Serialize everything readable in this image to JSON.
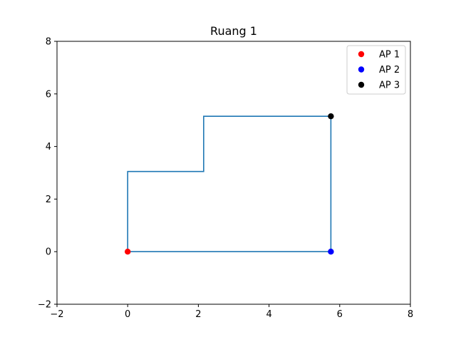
{
  "chart_data": {
    "type": "scatter",
    "title": "Ruang 1",
    "xlabel": "",
    "ylabel": "",
    "xlim": [
      -2,
      8
    ],
    "ylim": [
      -2,
      8
    ],
    "xticks": [
      -2,
      0,
      2,
      4,
      6,
      8
    ],
    "yticks": [
      -2,
      0,
      2,
      4,
      6,
      8
    ],
    "xtick_labels": [
      "−2",
      "0",
      "2",
      "4",
      "6",
      "8"
    ],
    "ytick_labels": [
      "−2",
      "0",
      "2",
      "4",
      "6",
      "8"
    ],
    "grid": false,
    "legend_position": "top-right",
    "room_outline": {
      "color": "#1f77b4",
      "x": [
        0,
        0,
        2.15,
        2.15,
        5.75,
        5.75,
        0
      ],
      "y": [
        0,
        3.05,
        3.05,
        5.15,
        5.15,
        0,
        0
      ]
    },
    "series": [
      {
        "name": "AP 1",
        "color": "#ff0000",
        "x": [
          0
        ],
        "y": [
          0
        ]
      },
      {
        "name": "AP 2",
        "color": "#0000ff",
        "x": [
          5.75
        ],
        "y": [
          0
        ]
      },
      {
        "name": "AP 3",
        "color": "#000000",
        "x": [
          5.75
        ],
        "y": [
          5.15
        ]
      }
    ]
  }
}
